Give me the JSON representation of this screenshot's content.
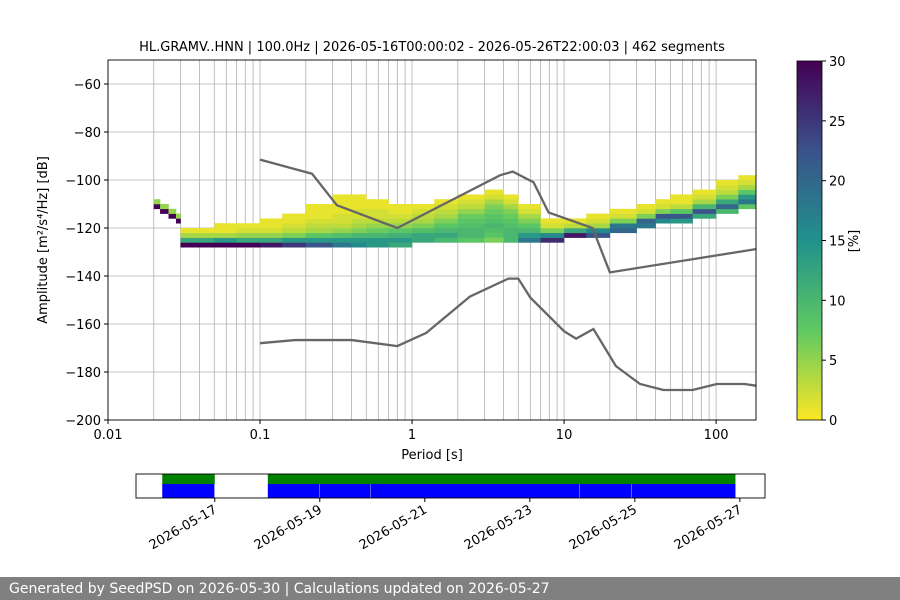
{
  "chart_data": [
    {
      "type": "heatmap",
      "title": "HL.GRAMV..HNN | 100.0Hz | 2026-05-16T00:00:02 - 2026-05-26T22:00:03 | 462 segments",
      "xlabel": "Period [s]",
      "ylabel": "Amplitude [m²/s⁴/Hz] [dB]",
      "xscale": "log",
      "xlim": [
        0.01,
        183
      ],
      "xticks": [
        0.01,
        0.1,
        1,
        10,
        100
      ],
      "ylim": [
        -200,
        -50
      ],
      "yticks": [
        {
          "value": -200,
          "label": "−200"
        },
        {
          "value": -180,
          "label": "−180"
        },
        {
          "value": -160,
          "label": "−160"
        },
        {
          "value": -140,
          "label": "−140"
        },
        {
          "value": -120,
          "label": "−120"
        },
        {
          "value": -100,
          "label": "−100"
        },
        {
          "value": -80,
          "label": "−80"
        },
        {
          "value": -60,
          "label": "−60"
        }
      ],
      "grid": true,
      "minor_grid": true,
      "colormap": [
        "#fde725",
        "#5ec962",
        "#21918c",
        "#3b528b",
        "#440154"
      ],
      "colorbar": {
        "label": "[%]",
        "lim": [
          0,
          30
        ],
        "ticks": [
          0,
          5,
          10,
          15,
          20,
          25,
          30
        ]
      },
      "cells": [
        {
          "period": 0.02,
          "db": [
            -112,
            -110
          ],
          "percent": [
            30,
            5
          ]
        },
        {
          "period": 0.022,
          "db": [
            -114,
            -112
          ],
          "percent": [
            30,
            5
          ]
        },
        {
          "period": 0.025,
          "db": [
            -116,
            -114
          ],
          "percent": [
            30,
            5
          ]
        },
        {
          "period": 0.028,
          "db": [
            -118,
            -116
          ],
          "percent": [
            30,
            5
          ]
        },
        {
          "period": 0.03,
          "db": [
            -128,
            -126,
            -124,
            -122
          ],
          "percent": [
            30,
            12,
            4,
            1
          ]
        },
        {
          "period": 0.04,
          "db": [
            -128,
            -126,
            -124,
            -122
          ],
          "percent": [
            30,
            12,
            4,
            1
          ]
        },
        {
          "period": 0.05,
          "db": [
            -128,
            -126,
            -124,
            -122,
            -120
          ],
          "percent": [
            30,
            14,
            4,
            1,
            1
          ]
        },
        {
          "period": 0.07,
          "db": [
            -128,
            -126,
            -124,
            -122,
            -120
          ],
          "percent": [
            30,
            12,
            5,
            2,
            1
          ]
        },
        {
          "period": 0.1,
          "db": [
            -128,
            -126,
            -124,
            -122,
            -120,
            -118
          ],
          "percent": [
            28,
            12,
            5,
            2,
            1,
            1
          ]
        },
        {
          "period": 0.14,
          "db": [
            -128,
            -126,
            -124,
            -122,
            -120,
            -118,
            -116
          ],
          "percent": [
            25,
            14,
            6,
            3,
            2,
            1,
            1
          ]
        },
        {
          "period": 0.2,
          "db": [
            -128,
            -126,
            -124,
            -122,
            -120,
            -118,
            -116,
            -114,
            -112
          ],
          "percent": [
            22,
            14,
            8,
            4,
            3,
            2,
            1,
            1,
            1
          ]
        },
        {
          "period": 0.3,
          "db": [
            -128,
            -126,
            -124,
            -122,
            -120,
            -118,
            -116,
            -114,
            -112,
            -110,
            -108
          ],
          "percent": [
            18,
            14,
            9,
            5,
            3,
            2,
            2,
            1,
            1,
            1,
            1
          ]
        },
        {
          "period": 0.4,
          "db": [
            -128,
            -126,
            -124,
            -122,
            -120,
            -118,
            -116,
            -114,
            -112,
            -110,
            -108
          ],
          "percent": [
            16,
            14,
            10,
            6,
            4,
            3,
            2,
            2,
            1,
            1,
            1
          ]
        },
        {
          "period": 0.5,
          "db": [
            -128,
            -126,
            -124,
            -122,
            -120,
            -118,
            -116,
            -114,
            -112,
            -110
          ],
          "percent": [
            14,
            14,
            10,
            7,
            5,
            3,
            2,
            2,
            1,
            1
          ]
        },
        {
          "period": 0.7,
          "db": [
            -128,
            -126,
            -124,
            -122,
            -120,
            -118,
            -116,
            -114,
            -112
          ],
          "percent": [
            12,
            14,
            11,
            8,
            5,
            3,
            2,
            1,
            1
          ]
        },
        {
          "period": 1,
          "db": [
            -126,
            -124,
            -122,
            -120,
            -118,
            -116,
            -114,
            -112
          ],
          "percent": [
            12,
            12,
            9,
            6,
            4,
            3,
            2,
            1
          ]
        },
        {
          "period": 1.4,
          "db": [
            -126,
            -124,
            -122,
            -120,
            -118,
            -116,
            -114,
            -112,
            -110
          ],
          "percent": [
            10,
            12,
            10,
            8,
            6,
            4,
            3,
            2,
            1
          ]
        },
        {
          "period": 2,
          "db": [
            -126,
            -124,
            -122,
            -120,
            -118,
            -116,
            -114,
            -112,
            -110,
            -108
          ],
          "percent": [
            8,
            10,
            10,
            9,
            8,
            7,
            5,
            3,
            2,
            1
          ]
        },
        {
          "period": 3,
          "db": [
            -126,
            -124,
            -122,
            -120,
            -118,
            -116,
            -114,
            -112,
            -110,
            -108,
            -106
          ],
          "percent": [
            6,
            8,
            9,
            10,
            9,
            8,
            7,
            6,
            4,
            2,
            1
          ]
        },
        {
          "period": 4,
          "db": [
            -126,
            -124,
            -122,
            -120,
            -118,
            -116,
            -114,
            -112,
            -110,
            -108
          ],
          "percent": [
            10,
            10,
            10,
            9,
            8,
            7,
            6,
            4,
            2,
            1
          ]
        },
        {
          "period": 5,
          "db": [
            -126,
            -124,
            -122,
            -120,
            -118,
            -116,
            -114,
            -112
          ],
          "percent": [
            18,
            14,
            10,
            8,
            6,
            4,
            2,
            1
          ]
        },
        {
          "period": 7,
          "db": [
            -126,
            -124,
            -122,
            -120,
            -118
          ],
          "percent": [
            26,
            16,
            6,
            2,
            1
          ]
        },
        {
          "period": 10,
          "db": [
            -124,
            -122,
            -120,
            -118
          ],
          "percent": [
            28,
            12,
            3,
            1
          ]
        },
        {
          "period": 14,
          "db": [
            -124,
            -122,
            -120,
            -118,
            -116
          ],
          "percent": [
            22,
            16,
            4,
            2,
            1
          ]
        },
        {
          "period": 20,
          "db": [
            -122,
            -120,
            -118,
            -116,
            -114
          ],
          "percent": [
            20,
            18,
            6,
            2,
            1
          ]
        },
        {
          "period": 30,
          "db": [
            -120,
            -118,
            -116,
            -114,
            -112
          ],
          "percent": [
            18,
            20,
            6,
            2,
            1
          ]
        },
        {
          "period": 40,
          "db": [
            -118,
            -116,
            -114,
            -112,
            -110
          ],
          "percent": [
            16,
            22,
            6,
            2,
            1
          ]
        },
        {
          "period": 50,
          "db": [
            -118,
            -116,
            -114,
            -112,
            -110,
            -108
          ],
          "percent": [
            14,
            22,
            8,
            3,
            1,
            1
          ]
        },
        {
          "period": 70,
          "db": [
            -116,
            -114,
            -112,
            -110,
            -108,
            -106
          ],
          "percent": [
            12,
            22,
            10,
            4,
            2,
            1
          ]
        },
        {
          "period": 100,
          "db": [
            -114,
            -112,
            -110,
            -108,
            -106,
            -104,
            -102
          ],
          "percent": [
            10,
            20,
            12,
            6,
            3,
            2,
            1
          ]
        },
        {
          "period": 140,
          "db": [
            -112,
            -110,
            -108,
            -106,
            -104,
            -102,
            -100
          ],
          "percent": [
            8,
            18,
            14,
            8,
            4,
            2,
            1
          ]
        }
      ],
      "lines": [
        {
          "color": "#666666",
          "x": [
            0.1,
            0.22,
            0.32,
            0.8,
            3.8,
            4.6,
            6.3,
            7.9,
            15.4,
            20,
            183
          ],
          "y": [
            -91.5,
            -97.4,
            -110.5,
            -120,
            -98,
            -96.5,
            -101,
            -113.5,
            -120,
            -138.5,
            -128.8
          ]
        },
        {
          "color": "#666666",
          "x": [
            0.1,
            0.17,
            0.4,
            0.8,
            1.24,
            2.4,
            4.3,
            5,
            6,
            10,
            12,
            15.6,
            21.9,
            31.6,
            45,
            70,
            101,
            154,
            183
          ],
          "y": [
            -168,
            -166.7,
            -166.7,
            -169.2,
            -163.7,
            -148.6,
            -141.1,
            -141.1,
            -149,
            -163,
            -166.1,
            -162.1,
            -177.5,
            -185,
            -187.5,
            -187.5,
            -185,
            -185,
            -185.7
          ]
        }
      ]
    },
    {
      "type": "timeline",
      "xlim": [
        "2026-05-15T12:00",
        "2026-05-27T11:30"
      ],
      "xticks": [
        "2026-05-17",
        "2026-05-19",
        "2026-05-21",
        "2026-05-23",
        "2026-05-25",
        "2026-05-27"
      ],
      "data_color": "#008000",
      "psd_color": "#0000ff",
      "data_segments": [
        [
          "2026-05-16T00:00",
          "2026-05-17T00:00"
        ],
        [
          "2026-05-18T00:15",
          "2026-05-26T22:00"
        ]
      ],
      "psd_segments": [
        [
          "2026-05-16T00:00",
          "2026-05-16T23:50"
        ],
        [
          "2026-05-18T00:15",
          "2026-05-18T23:55"
        ],
        [
          "2026-05-19T00:05",
          "2026-05-19T23:15"
        ],
        [
          "2026-05-19T23:25",
          "2026-05-23T22:45"
        ],
        [
          "2026-05-23T22:55",
          "2026-05-24T22:30"
        ],
        [
          "2026-05-24T22:40",
          "2026-05-26T22:00"
        ]
      ]
    }
  ],
  "footer": {
    "text": "Generated by SeedPSD on 2026-05-30 | Calculations updated on 2026-05-27"
  }
}
